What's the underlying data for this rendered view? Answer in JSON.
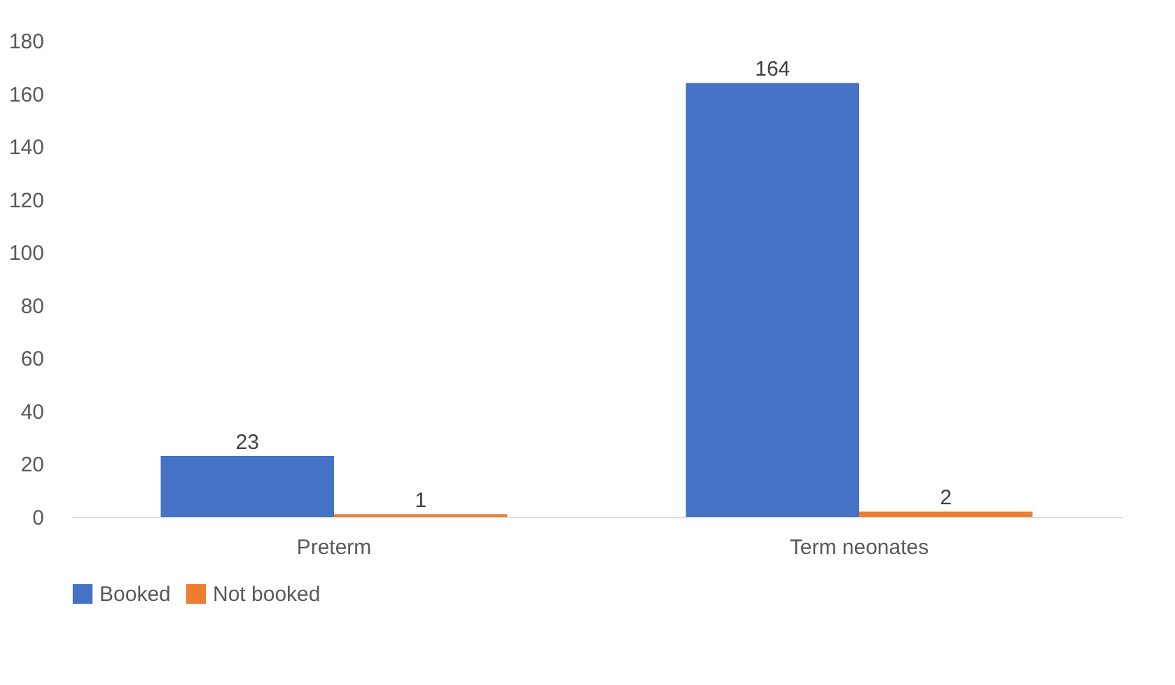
{
  "chart_data": {
    "type": "bar",
    "categories": [
      "Preterm",
      "Term neonates"
    ],
    "series": [
      {
        "name": "Booked",
        "color": "#4472c4",
        "values": [
          23,
          164
        ]
      },
      {
        "name": "Not booked",
        "color": "#ed7d31",
        "values": [
          1,
          2
        ]
      }
    ],
    "ylim": [
      0,
      180
    ],
    "yticks": [
      0,
      20,
      40,
      60,
      80,
      100,
      120,
      140,
      160,
      180
    ],
    "grid": false,
    "legend": "bottom",
    "data_labels": true
  }
}
